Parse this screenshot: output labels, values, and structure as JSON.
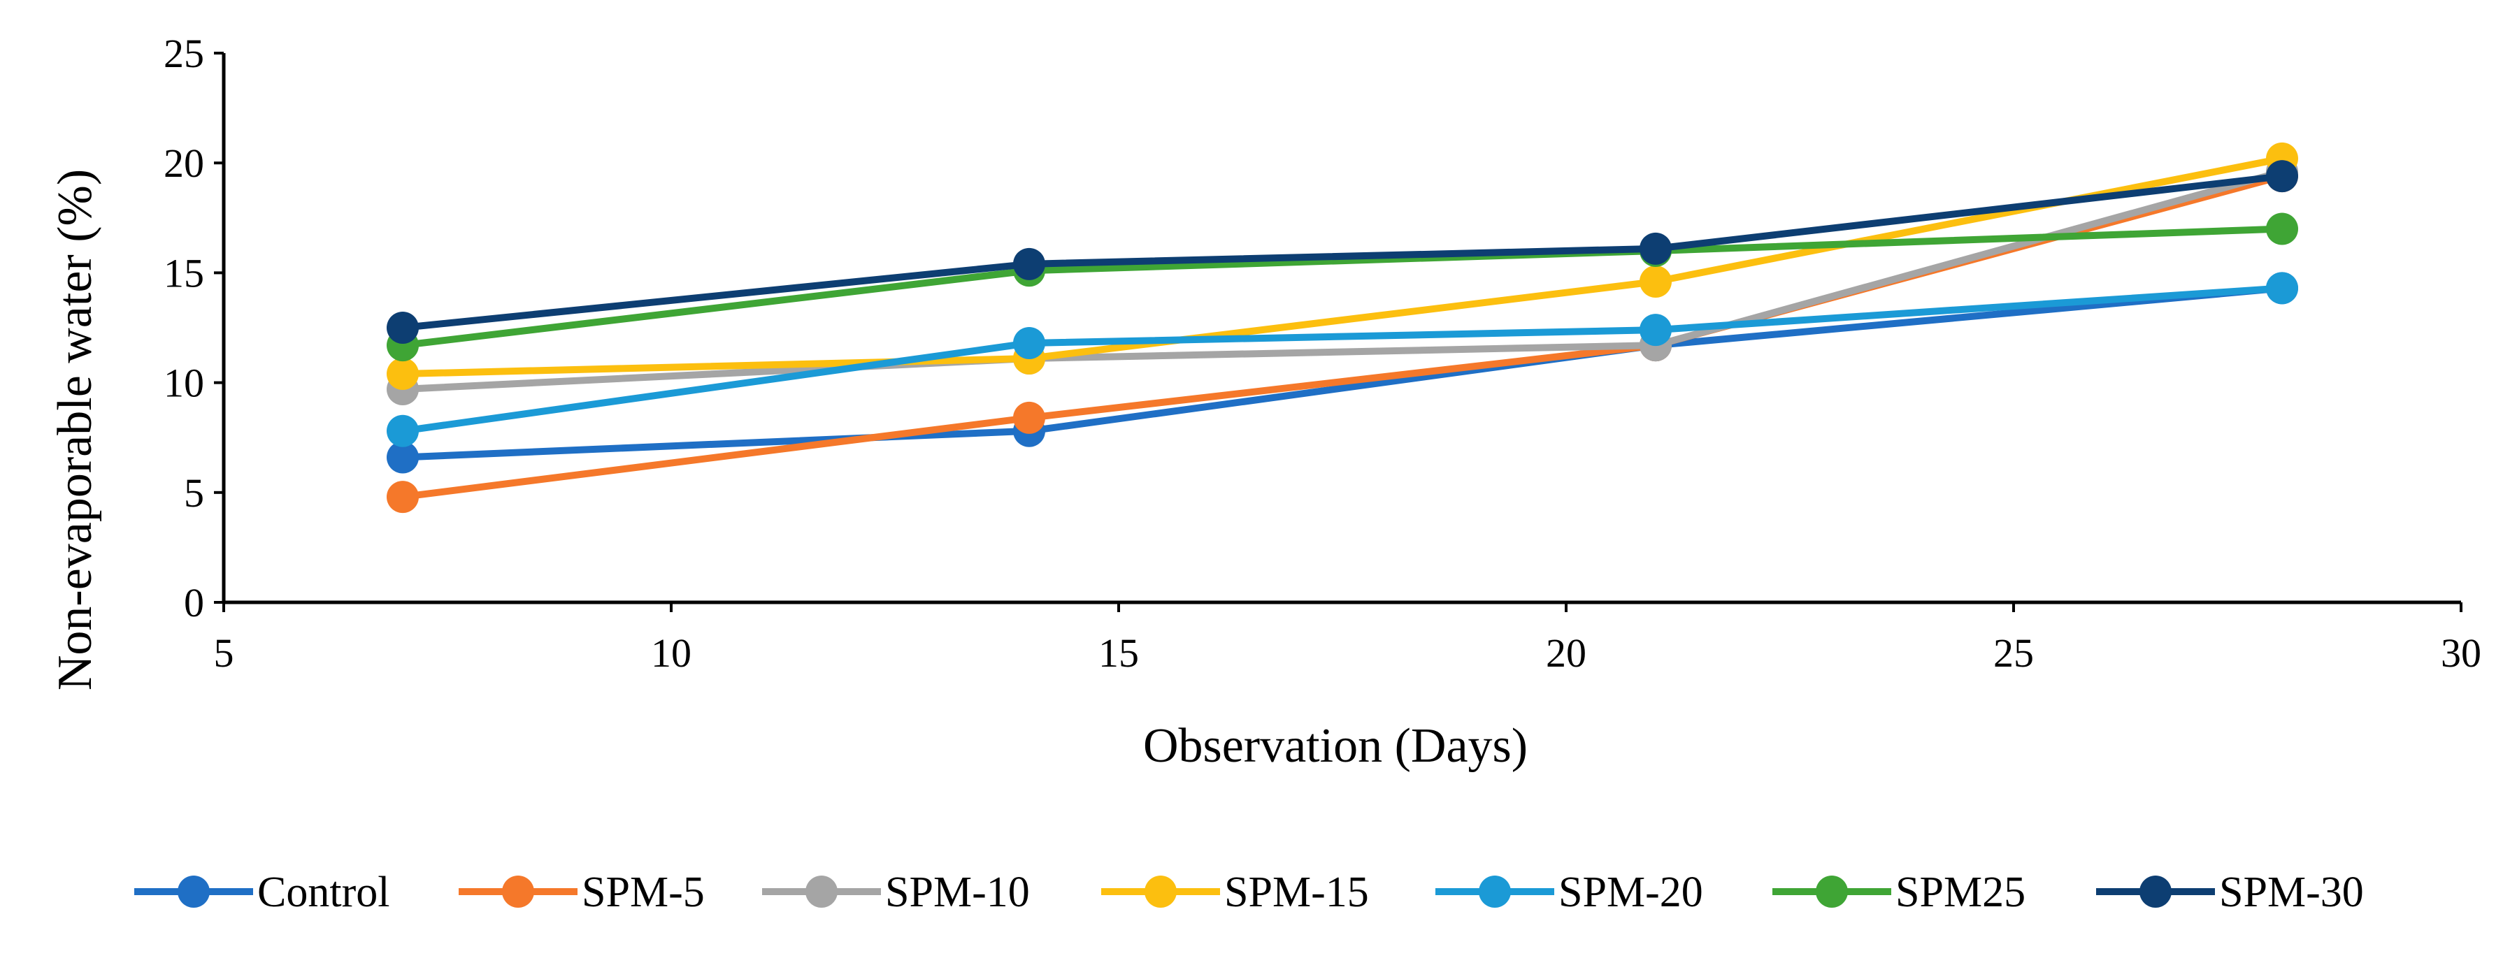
{
  "chart_data": {
    "type": "line",
    "xlabel": "Observation (Days)",
    "ylabel": "Non-evaporable water (%)",
    "xlim": [
      5,
      30
    ],
    "ylim": [
      0,
      25
    ],
    "xticks": [
      5,
      10,
      15,
      20,
      25,
      30
    ],
    "yticks": [
      0,
      5,
      10,
      15,
      20,
      25
    ],
    "x": [
      7,
      14,
      21,
      28
    ],
    "grid": false,
    "legend_position": "bottom",
    "series": [
      {
        "name": "Control",
        "color": "#1f6fc5",
        "values": [
          6.6,
          7.8,
          11.7,
          14.3
        ]
      },
      {
        "name": "SPM-5",
        "color": "#f5782a",
        "values": [
          4.8,
          8.4,
          11.7,
          19.4
        ]
      },
      {
        "name": "SPM-10",
        "color": "#a5a5a5",
        "values": [
          9.7,
          11.1,
          11.7,
          19.6
        ]
      },
      {
        "name": "SPM-15",
        "color": "#fcbf0f",
        "values": [
          10.4,
          11.1,
          14.6,
          20.2
        ]
      },
      {
        "name": "SPM-20",
        "color": "#1b9ad6",
        "values": [
          7.8,
          11.8,
          12.4,
          14.3
        ]
      },
      {
        "name": "SPM25",
        "color": "#3fa535",
        "values": [
          11.7,
          15.1,
          16.0,
          17.0
        ]
      },
      {
        "name": "SPM-30",
        "color": "#0d3e72",
        "values": [
          12.5,
          15.4,
          16.1,
          19.4
        ]
      }
    ]
  }
}
